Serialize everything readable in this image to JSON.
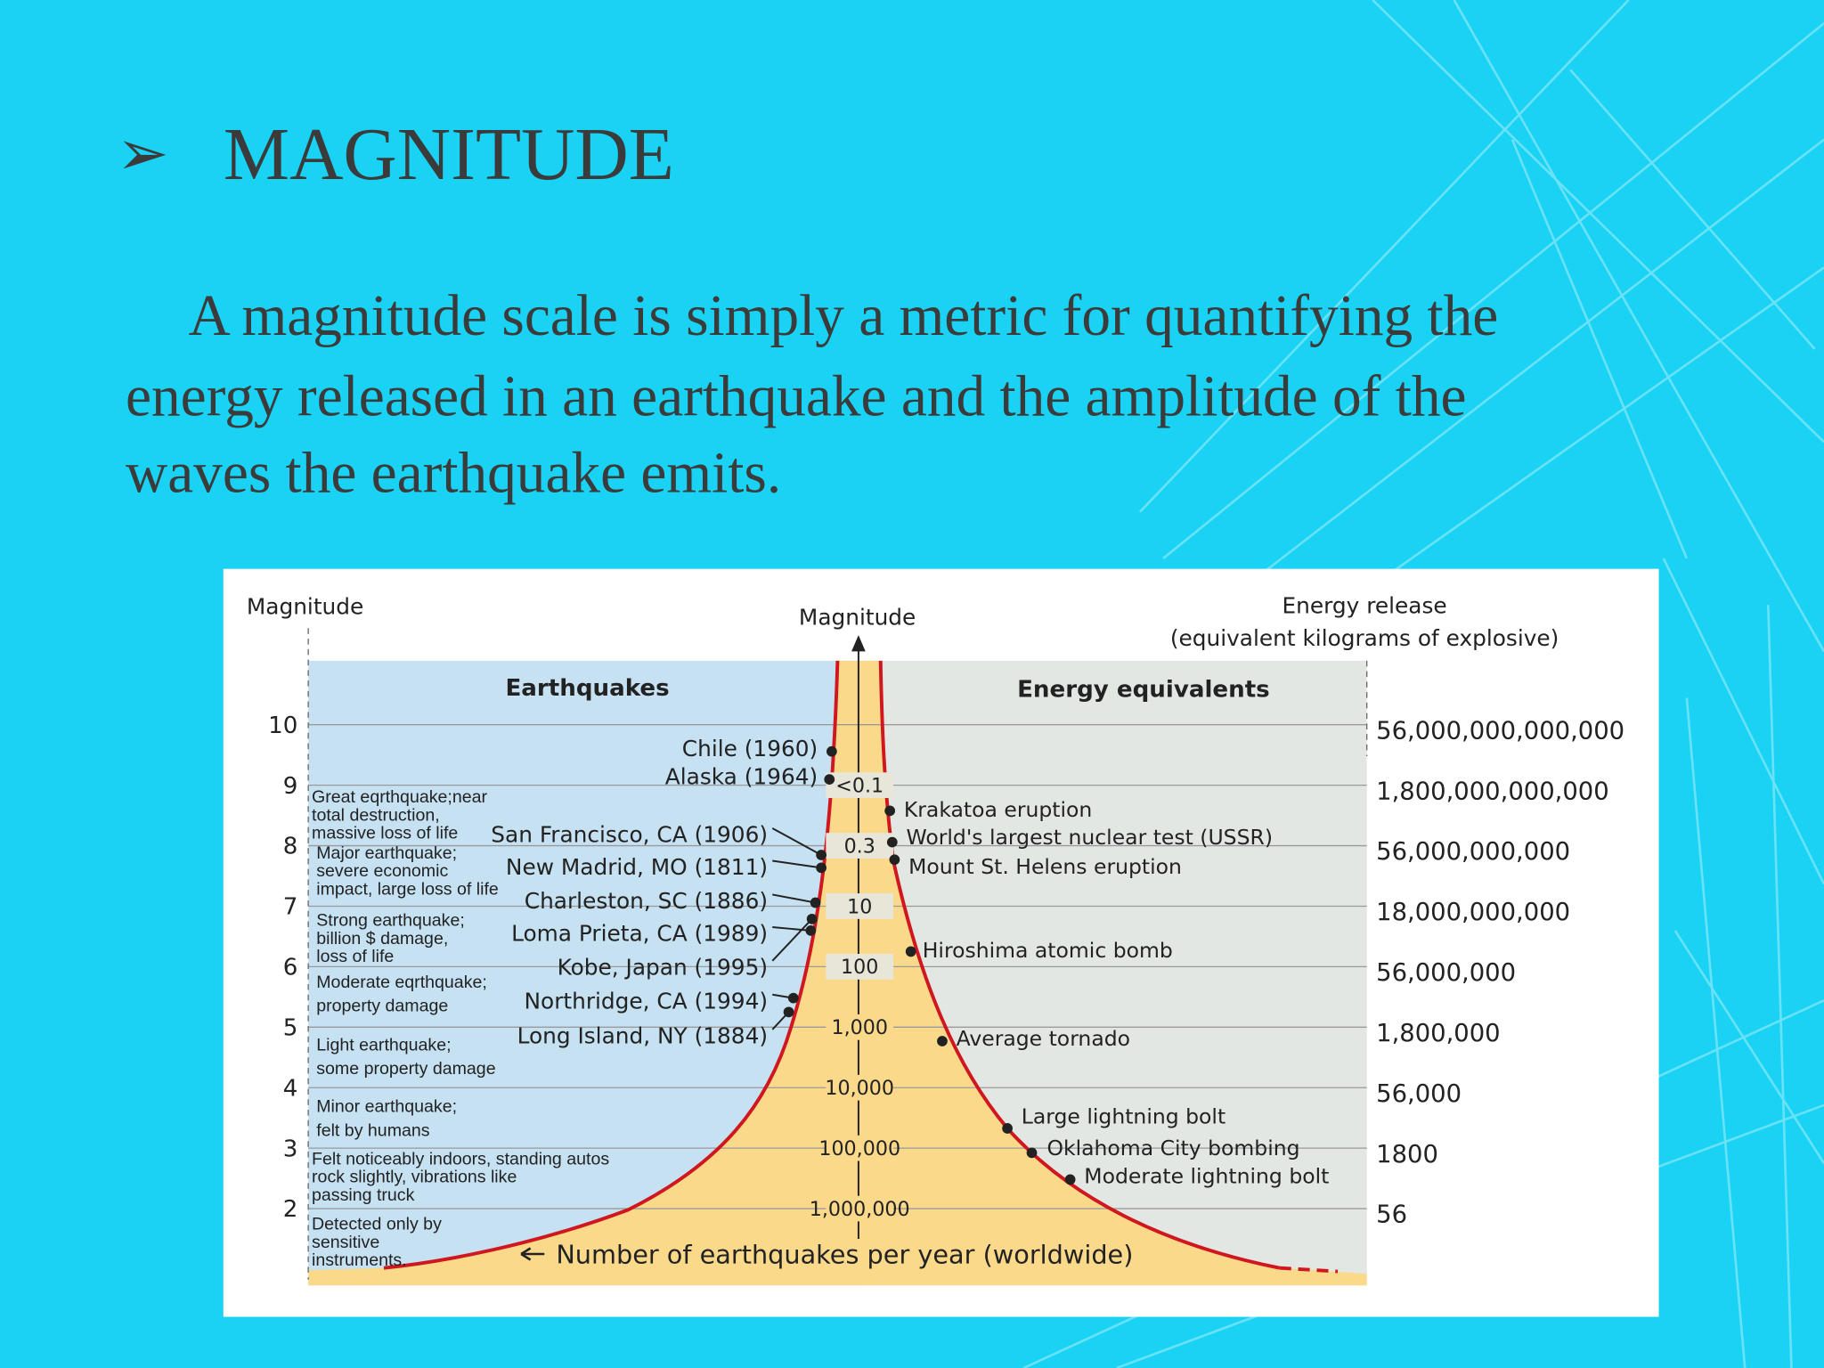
{
  "slide": {
    "title": "MAGNITUDE",
    "body_lines": [
      "A magnitude scale is simply a metric for quantifying the",
      "energy released in an earthquake and the amplitude of the",
      "waves the earthquake emits."
    ]
  },
  "figure": {
    "left_axis_title": "Magnitude",
    "center_axis_title": "Magnitude",
    "right_axis_title": [
      "Energy release",
      "(equivalent kilograms of explosive)"
    ],
    "left_panel_title": "Earthquakes",
    "right_panel_title": "Energy equivalents",
    "magnitudes": [
      "10",
      "9",
      "8",
      "7",
      "6",
      "5",
      "4",
      "3",
      "2"
    ],
    "energy_release": [
      "56,000,000,000,000",
      "1,800,000,000,000",
      "56,000,000,000",
      "18,000,000,000",
      "56,000,000",
      "1,800,000",
      "56,000",
      "1800",
      "56"
    ],
    "frequencies": [
      "<0.1",
      "0.3",
      "10",
      "100",
      "1,000",
      "10,000",
      "100,000",
      "1,000,000"
    ],
    "earthquakes": [
      "Chile (1960)",
      "Alaska (1964)",
      "San Francisco, CA (1906)",
      "New Madrid, MO (1811)",
      "Charleston, SC (1886)",
      "Loma Prieta, CA (1989)",
      "Kobe, Japan (1995)",
      "Northridge, CA (1994)",
      "Long Island, NY (1884)"
    ],
    "energy_equivalents": [
      "Krakatoa eruption",
      "World's largest nuclear test (USSR)",
      "Mount St. Helens eruption",
      "Hiroshima atomic bomb",
      "Average tornado",
      "Large lightning bolt",
      "Oklahoma City bombing",
      "Moderate lightning bolt"
    ],
    "descriptions": [
      [
        "Great eqrthquake;near",
        "total destruction,",
        "massive loss of life"
      ],
      [
        "Major earthquake;",
        "severe economic",
        "impact, large loss of life"
      ],
      [
        "Strong earthquake;",
        "billion $ damage,",
        "loss of life"
      ],
      [
        "Moderate eqrthquake;",
        "property damage"
      ],
      [
        "Light earthquake;",
        "some property damage"
      ],
      [
        "Minor earthquake;",
        "felt by humans"
      ],
      [
        "Felt noticeably indoors, standing autos",
        "rock slightly, vibrations like",
        "passing truck"
      ],
      [
        "Detected only by",
        "sensitive",
        "instruments."
      ]
    ],
    "footer": "Number of earthquakes per year (worldwide)"
  }
}
